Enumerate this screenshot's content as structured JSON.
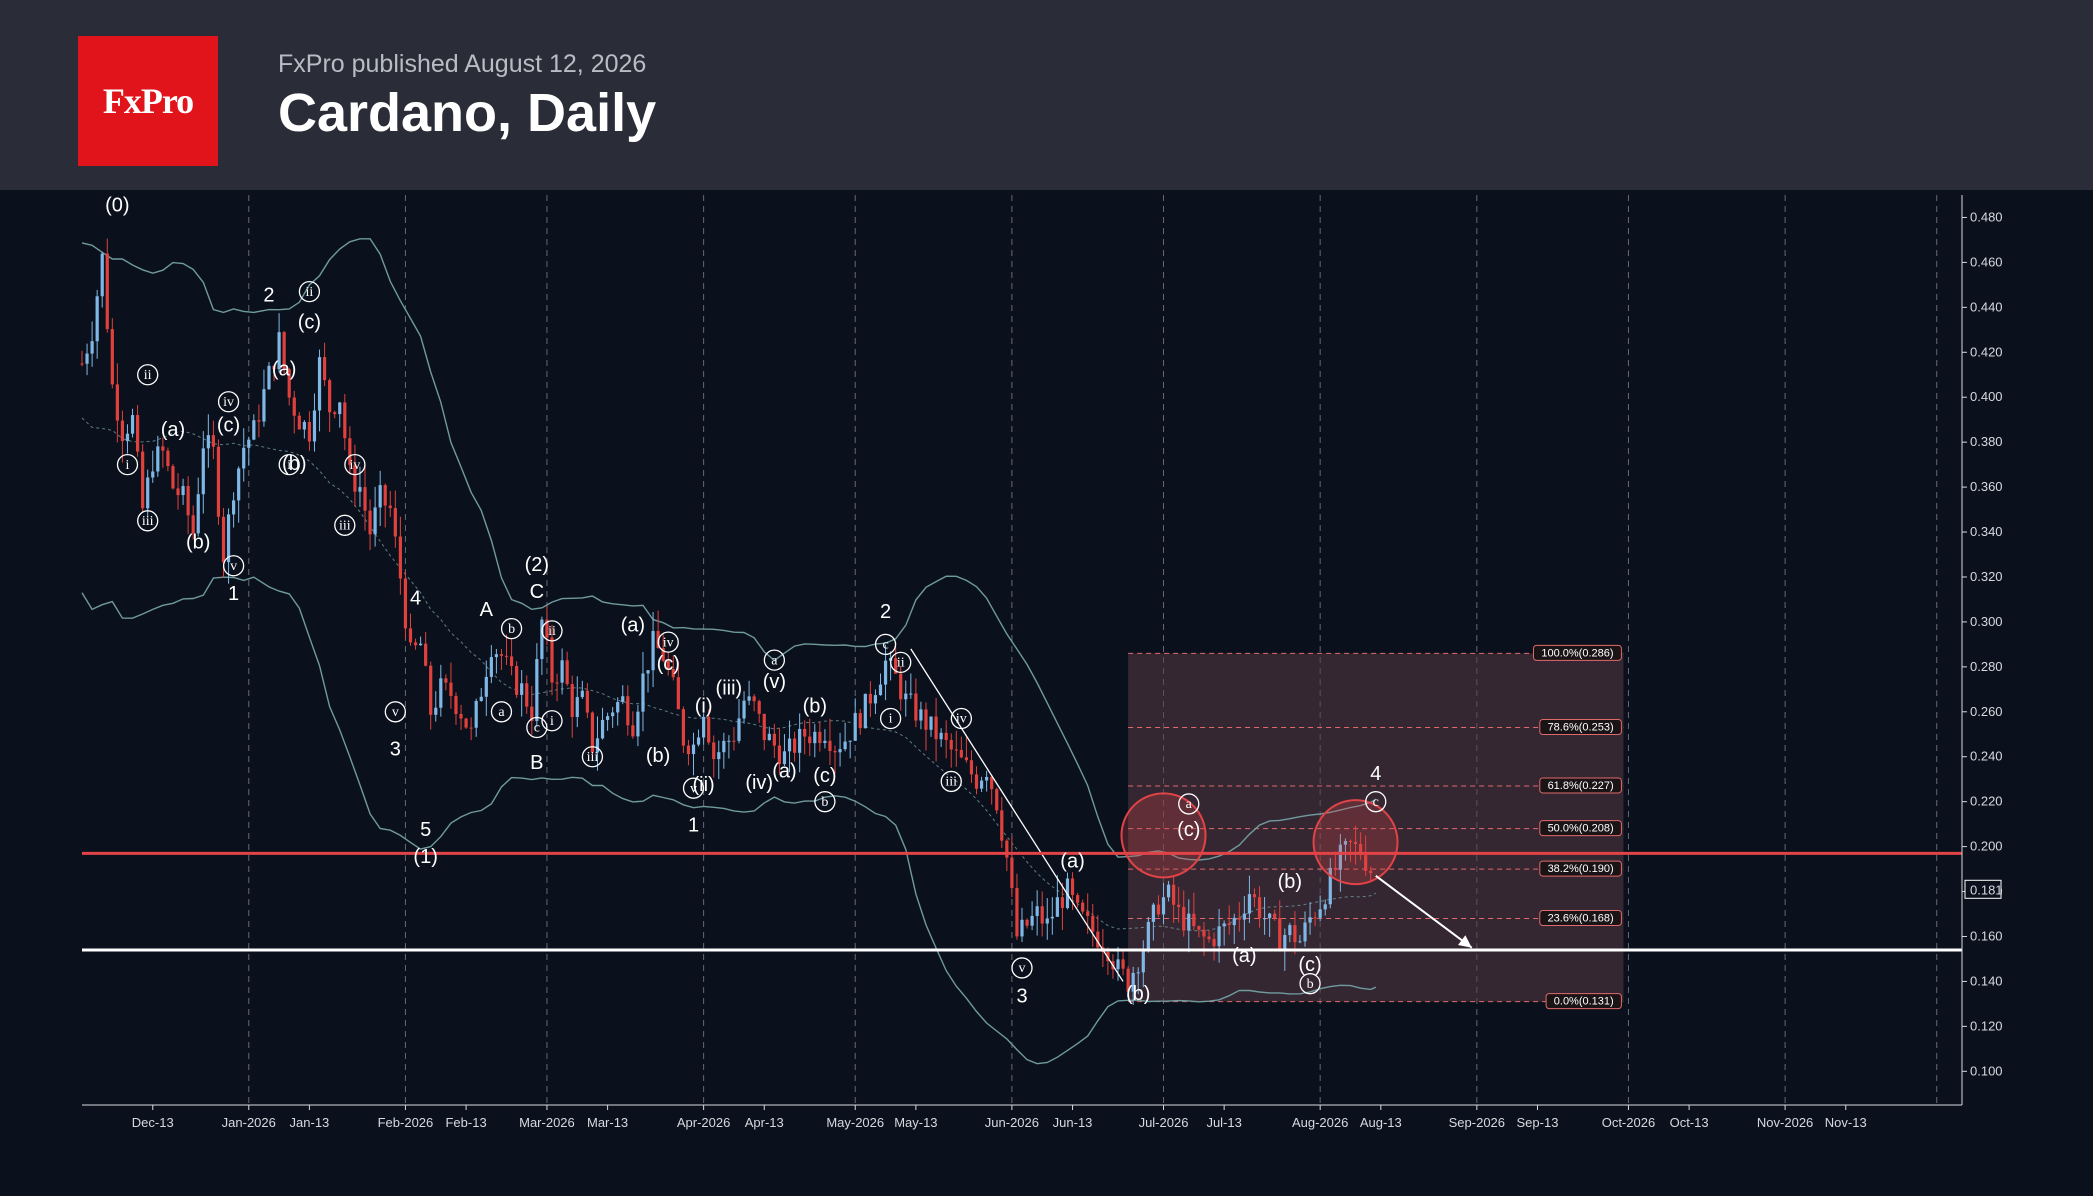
{
  "header": {
    "logo_text": "FxPro",
    "published": "FxPro published August 12, 2026",
    "title": "Cardano, Daily"
  },
  "colors": {
    "background": "#0b111c",
    "header": "#2a2d37",
    "logo": "#e2141b",
    "bull_candle": "#7fb8e6",
    "bear_candle": "#e0413d",
    "bollinger": "#6f9a9e",
    "resistance": "#e24346",
    "support": "#ffffff",
    "fib_zone": "#5a3a46"
  },
  "chart_data": {
    "type": "candlestick",
    "title": "Cardano, Daily",
    "ylim": [
      0.085,
      0.49
    ],
    "x_range": [
      "2025-11-29",
      "2026-12-06"
    ],
    "y_ticks": [
      "0.100",
      "0.120",
      "0.140",
      "0.160",
      "0.180",
      "0.200",
      "0.220",
      "0.240",
      "0.260",
      "0.280",
      "0.300",
      "0.320",
      "0.340",
      "0.360",
      "0.380",
      "0.400",
      "0.420",
      "0.440",
      "0.460",
      "0.480"
    ],
    "x_ticks": [
      {
        "date": "2025-12-13",
        "label": "Dec-13"
      },
      {
        "date": "2026-01-01",
        "label": "Jan-2026"
      },
      {
        "date": "2026-01-13",
        "label": "Jan-13"
      },
      {
        "date": "2026-02-01",
        "label": "Feb-2026"
      },
      {
        "date": "2026-02-13",
        "label": "Feb-13"
      },
      {
        "date": "2026-03-01",
        "label": "Mar-2026"
      },
      {
        "date": "2026-03-13",
        "label": "Mar-13"
      },
      {
        "date": "2026-04-01",
        "label": "Apr-2026"
      },
      {
        "date": "2026-04-13",
        "label": "Apr-13"
      },
      {
        "date": "2026-05-01",
        "label": "May-2026"
      },
      {
        "date": "2026-05-13",
        "label": "May-13"
      },
      {
        "date": "2026-06-01",
        "label": "Jun-2026"
      },
      {
        "date": "2026-06-13",
        "label": "Jun-13"
      },
      {
        "date": "2026-07-01",
        "label": "Jul-2026"
      },
      {
        "date": "2026-07-13",
        "label": "Jul-13"
      },
      {
        "date": "2026-08-01",
        "label": "Aug-2026"
      },
      {
        "date": "2026-08-13",
        "label": "Aug-13"
      },
      {
        "date": "2026-09-01",
        "label": "Sep-2026"
      },
      {
        "date": "2026-09-13",
        "label": "Sep-13"
      },
      {
        "date": "2026-10-01",
        "label": "Oct-2026"
      },
      {
        "date": "2026-10-13",
        "label": "Oct-13"
      },
      {
        "date": "2026-11-01",
        "label": "Nov-2026"
      },
      {
        "date": "2026-11-13",
        "label": "Nov-13"
      }
    ],
    "gridlines_at": [
      "2026-01-01",
      "2026-02-01",
      "2026-03-01",
      "2026-04-01",
      "2026-05-01",
      "2026-06-01",
      "2026-07-01",
      "2026-08-01",
      "2026-09-01",
      "2026-10-01",
      "2026-11-01",
      "2026-12-01"
    ],
    "price_path": [
      [
        "2025-11-29",
        0.415
      ],
      [
        "2025-12-01",
        0.43
      ],
      [
        "2025-12-03",
        0.462
      ],
      [
        "2025-12-05",
        0.405
      ],
      [
        "2025-12-07",
        0.385
      ],
      [
        "2025-12-09",
        0.39
      ],
      [
        "2025-12-11",
        0.35
      ],
      [
        "2025-12-13",
        0.372
      ],
      [
        "2025-12-15",
        0.375
      ],
      [
        "2025-12-17",
        0.36
      ],
      [
        "2025-12-19",
        0.355
      ],
      [
        "2025-12-21",
        0.34
      ],
      [
        "2025-12-23",
        0.38
      ],
      [
        "2025-12-25",
        0.375
      ],
      [
        "2025-12-27",
        0.33
      ],
      [
        "2025-12-29",
        0.36
      ],
      [
        "2025-12-31",
        0.378
      ],
      [
        "2026-01-02",
        0.385
      ],
      [
        "2026-01-05",
        0.41
      ],
      [
        "2026-01-07",
        0.425
      ],
      [
        "2026-01-09",
        0.4
      ],
      [
        "2026-01-11",
        0.39
      ],
      [
        "2026-01-13",
        0.385
      ],
      [
        "2026-01-15",
        0.415
      ],
      [
        "2026-01-17",
        0.395
      ],
      [
        "2026-01-19",
        0.4
      ],
      [
        "2026-01-21",
        0.365
      ],
      [
        "2026-01-23",
        0.36
      ],
      [
        "2026-01-25",
        0.34
      ],
      [
        "2026-01-27",
        0.355
      ],
      [
        "2026-01-29",
        0.35
      ],
      [
        "2026-01-31",
        0.32
      ],
      [
        "2026-02-02",
        0.285
      ],
      [
        "2026-02-04",
        0.29
      ],
      [
        "2026-02-06",
        0.26
      ],
      [
        "2026-02-08",
        0.27
      ],
      [
        "2026-02-10",
        0.268
      ],
      [
        "2026-02-12",
        0.26
      ],
      [
        "2026-02-14",
        0.25
      ],
      [
        "2026-02-16",
        0.27
      ],
      [
        "2026-02-18",
        0.29
      ],
      [
        "2026-02-20",
        0.285
      ],
      [
        "2026-02-22",
        0.275
      ],
      [
        "2026-02-24",
        0.27
      ],
      [
        "2026-02-26",
        0.26
      ],
      [
        "2026-02-28",
        0.3
      ],
      [
        "2026-03-02",
        0.275
      ],
      [
        "2026-03-04",
        0.28
      ],
      [
        "2026-03-06",
        0.262
      ],
      [
        "2026-03-08",
        0.265
      ],
      [
        "2026-03-10",
        0.245
      ],
      [
        "2026-03-12",
        0.255
      ],
      [
        "2026-03-14",
        0.262
      ],
      [
        "2026-03-16",
        0.265
      ],
      [
        "2026-03-18",
        0.255
      ],
      [
        "2026-03-20",
        0.275
      ],
      [
        "2026-03-22",
        0.29
      ],
      [
        "2026-03-24",
        0.285
      ],
      [
        "2026-03-26",
        0.27
      ],
      [
        "2026-03-28",
        0.248
      ],
      [
        "2026-03-30",
        0.245
      ],
      [
        "2026-04-01",
        0.262
      ],
      [
        "2026-04-03",
        0.24
      ],
      [
        "2026-04-05",
        0.245
      ],
      [
        "2026-04-07",
        0.25
      ],
      [
        "2026-04-09",
        0.265
      ],
      [
        "2026-04-11",
        0.262
      ],
      [
        "2026-04-13",
        0.25
      ],
      [
        "2026-04-15",
        0.245
      ],
      [
        "2026-04-17",
        0.24
      ],
      [
        "2026-04-19",
        0.245
      ],
      [
        "2026-04-21",
        0.25
      ],
      [
        "2026-04-23",
        0.25
      ],
      [
        "2026-04-25",
        0.252
      ],
      [
        "2026-04-27",
        0.245
      ],
      [
        "2026-04-29",
        0.248
      ],
      [
        "2026-05-01",
        0.255
      ],
      [
        "2026-05-03",
        0.262
      ],
      [
        "2026-05-05",
        0.272
      ],
      [
        "2026-05-07",
        0.282
      ],
      [
        "2026-05-09",
        0.275
      ],
      [
        "2026-05-11",
        0.265
      ],
      [
        "2026-05-13",
        0.26
      ],
      [
        "2026-05-15",
        0.255
      ],
      [
        "2026-05-17",
        0.25
      ],
      [
        "2026-05-19",
        0.245
      ],
      [
        "2026-05-21",
        0.24
      ],
      [
        "2026-05-23",
        0.235
      ],
      [
        "2026-05-25",
        0.23
      ],
      [
        "2026-05-27",
        0.235
      ],
      [
        "2026-05-29",
        0.22
      ],
      [
        "2026-05-31",
        0.195
      ],
      [
        "2026-06-02",
        0.16
      ],
      [
        "2026-06-04",
        0.165
      ],
      [
        "2026-06-06",
        0.17
      ],
      [
        "2026-06-08",
        0.165
      ],
      [
        "2026-06-10",
        0.175
      ],
      [
        "2026-06-12",
        0.18
      ],
      [
        "2026-06-14",
        0.17
      ],
      [
        "2026-06-16",
        0.165
      ],
      [
        "2026-06-18",
        0.16
      ],
      [
        "2026-06-20",
        0.155
      ],
      [
        "2026-06-22",
        0.145
      ],
      [
        "2026-06-24",
        0.14
      ],
      [
        "2026-06-26",
        0.15
      ],
      [
        "2026-06-28",
        0.162
      ],
      [
        "2026-06-30",
        0.175
      ],
      [
        "2026-07-02",
        0.178
      ],
      [
        "2026-07-04",
        0.17
      ],
      [
        "2026-07-06",
        0.165
      ],
      [
        "2026-07-08",
        0.16
      ],
      [
        "2026-07-10",
        0.158
      ],
      [
        "2026-07-12",
        0.162
      ],
      [
        "2026-07-14",
        0.165
      ],
      [
        "2026-07-16",
        0.17
      ],
      [
        "2026-07-18",
        0.18
      ],
      [
        "2026-07-20",
        0.172
      ],
      [
        "2026-07-22",
        0.165
      ],
      [
        "2026-07-24",
        0.16
      ],
      [
        "2026-07-26",
        0.162
      ],
      [
        "2026-07-28",
        0.158
      ],
      [
        "2026-07-30",
        0.168
      ],
      [
        "2026-08-01",
        0.175
      ],
      [
        "2026-08-03",
        0.185
      ],
      [
        "2026-08-05",
        0.195
      ],
      [
        "2026-08-07",
        0.2
      ],
      [
        "2026-08-09",
        0.198
      ],
      [
        "2026-08-11",
        0.19
      ],
      [
        "2026-08-12",
        0.181
      ]
    ],
    "current_price": "0.181",
    "resistance_level": 0.197,
    "support_level": 0.154,
    "fibonacci": {
      "start": "2026-06-24",
      "end": "2026-09-30",
      "levels": [
        {
          "value": 0.286,
          "label": "100.0%(0.286)"
        },
        {
          "value": 0.253,
          "label": "78.6%(0.253)"
        },
        {
          "value": 0.227,
          "label": "61.8%(0.227)"
        },
        {
          "value": 0.208,
          "label": "50.0%(0.208)"
        },
        {
          "value": 0.19,
          "label": "38.2%(0.190)"
        },
        {
          "value": 0.168,
          "label": "23.6%(0.168)"
        },
        {
          "value": 0.131,
          "label": "0.0%(0.131)"
        }
      ]
    },
    "forecast_arrow": [
      [
        "2026-08-12",
        0.187
      ],
      [
        "2026-08-31",
        0.155
      ]
    ],
    "trendline": [
      [
        "2026-05-12",
        0.288
      ],
      [
        "2026-06-23",
        0.14
      ]
    ],
    "highlight_circles": [
      {
        "date": "2026-07-01",
        "value": 0.205
      },
      {
        "date": "2026-08-08",
        "value": 0.202
      }
    ],
    "wave_labels": [
      {
        "t": "(0)",
        "date": "2025-12-06",
        "v": 0.485,
        "style": "plain"
      },
      {
        "t": "ii",
        "date": "2025-12-12",
        "v": 0.41,
        "style": "circle"
      },
      {
        "t": "i",
        "date": "2025-12-08",
        "v": 0.37,
        "style": "circle"
      },
      {
        "t": "(a)",
        "date": "2025-12-17",
        "v": 0.385,
        "style": "plain"
      },
      {
        "t": "iii",
        "date": "2025-12-12",
        "v": 0.345,
        "style": "circle"
      },
      {
        "t": "(b)",
        "date": "2025-12-22",
        "v": 0.335,
        "style": "plain"
      },
      {
        "t": "(c)",
        "date": "2025-12-28",
        "v": 0.387,
        "style": "plain"
      },
      {
        "t": "iv",
        "date": "2025-12-28",
        "v": 0.398,
        "style": "circle"
      },
      {
        "t": "v",
        "date": "2025-12-29",
        "v": 0.325,
        "style": "circle"
      },
      {
        "t": "1",
        "date": "2025-12-29",
        "v": 0.312,
        "style": "plain"
      },
      {
        "t": "2",
        "date": "2026-01-05",
        "v": 0.445,
        "style": "plain"
      },
      {
        "t": "ii",
        "date": "2026-01-13",
        "v": 0.447,
        "style": "circle"
      },
      {
        "t": "(c)",
        "date": "2026-01-13",
        "v": 0.433,
        "style": "plain"
      },
      {
        "t": "(a)",
        "date": "2026-01-08",
        "v": 0.412,
        "style": "plain"
      },
      {
        "t": "i",
        "date": "2026-01-09",
        "v": 0.37,
        "style": "circle"
      },
      {
        "t": "(b)",
        "date": "2026-01-10",
        "v": 0.37,
        "style": "plain"
      },
      {
        "t": "iv",
        "date": "2026-01-22",
        "v": 0.37,
        "style": "circle"
      },
      {
        "t": "iii",
        "date": "2026-01-20",
        "v": 0.343,
        "style": "circle"
      },
      {
        "t": "4",
        "date": "2026-02-03",
        "v": 0.31,
        "style": "plain"
      },
      {
        "t": "v",
        "date": "2026-01-30",
        "v": 0.26,
        "style": "circle"
      },
      {
        "t": "3",
        "date": "2026-01-30",
        "v": 0.243,
        "style": "plain"
      },
      {
        "t": "5",
        "date": "2026-02-05",
        "v": 0.207,
        "style": "plain"
      },
      {
        "t": "(1)",
        "date": "2026-02-05",
        "v": 0.195,
        "style": "plain"
      },
      {
        "t": "A",
        "date": "2026-02-17",
        "v": 0.305,
        "style": "plain"
      },
      {
        "t": "b",
        "date": "2026-02-22",
        "v": 0.297,
        "style": "circle"
      },
      {
        "t": "a",
        "date": "2026-02-20",
        "v": 0.26,
        "style": "circle"
      },
      {
        "t": "(2)",
        "date": "2026-02-27",
        "v": 0.325,
        "style": "plain"
      },
      {
        "t": "C",
        "date": "2026-02-27",
        "v": 0.313,
        "style": "plain"
      },
      {
        "t": "ii",
        "date": "2026-03-02",
        "v": 0.296,
        "style": "circle"
      },
      {
        "t": "i",
        "date": "2026-03-02",
        "v": 0.256,
        "style": "circle"
      },
      {
        "t": "c",
        "date": "2026-02-27",
        "v": 0.253,
        "style": "circle"
      },
      {
        "t": "B",
        "date": "2026-02-27",
        "v": 0.237,
        "style": "plain"
      },
      {
        "t": "iii",
        "date": "2026-03-10",
        "v": 0.24,
        "style": "circle"
      },
      {
        "t": "(a)",
        "date": "2026-03-18",
        "v": 0.298,
        "style": "plain"
      },
      {
        "t": "iv",
        "date": "2026-03-25",
        "v": 0.291,
        "style": "circle"
      },
      {
        "t": "(c)",
        "date": "2026-03-25",
        "v": 0.281,
        "style": "plain"
      },
      {
        "t": "(b)",
        "date": "2026-03-23",
        "v": 0.24,
        "style": "plain"
      },
      {
        "t": "(i)",
        "date": "2026-04-01",
        "v": 0.262,
        "style": "plain"
      },
      {
        "t": "(iii)",
        "date": "2026-04-06",
        "v": 0.27,
        "style": "plain"
      },
      {
        "t": "v",
        "date": "2026-03-30",
        "v": 0.226,
        "style": "circle"
      },
      {
        "t": "(ii)",
        "date": "2026-04-01",
        "v": 0.227,
        "style": "plain"
      },
      {
        "t": "1",
        "date": "2026-03-30",
        "v": 0.209,
        "style": "plain"
      },
      {
        "t": "(iv)",
        "date": "2026-04-12",
        "v": 0.228,
        "style": "plain"
      },
      {
        "t": "(a)",
        "date": "2026-04-17",
        "v": 0.233,
        "style": "plain"
      },
      {
        "t": "a",
        "date": "2026-04-15",
        "v": 0.283,
        "style": "circle"
      },
      {
        "t": "(v)",
        "date": "2026-04-15",
        "v": 0.273,
        "style": "plain"
      },
      {
        "t": "(b)",
        "date": "2026-04-23",
        "v": 0.262,
        "style": "plain"
      },
      {
        "t": "(c)",
        "date": "2026-04-25",
        "v": 0.231,
        "style": "plain"
      },
      {
        "t": "b",
        "date": "2026-04-25",
        "v": 0.22,
        "style": "circle"
      },
      {
        "t": "2",
        "date": "2026-05-07",
        "v": 0.304,
        "style": "plain"
      },
      {
        "t": "c",
        "date": "2026-05-07",
        "v": 0.29,
        "style": "circle"
      },
      {
        "t": "ii",
        "date": "2026-05-10",
        "v": 0.282,
        "style": "circle"
      },
      {
        "t": "i",
        "date": "2026-05-08",
        "v": 0.257,
        "style": "circle"
      },
      {
        "t": "iv",
        "date": "2026-05-22",
        "v": 0.257,
        "style": "circle"
      },
      {
        "t": "iii",
        "date": "2026-05-20",
        "v": 0.229,
        "style": "circle"
      },
      {
        "t": "(a)",
        "date": "2026-06-13",
        "v": 0.193,
        "style": "plain"
      },
      {
        "t": "v",
        "date": "2026-06-03",
        "v": 0.146,
        "style": "circle"
      },
      {
        "t": "3",
        "date": "2026-06-03",
        "v": 0.133,
        "style": "plain"
      },
      {
        "t": "(b)",
        "date": "2026-06-26",
        "v": 0.134,
        "style": "plain"
      },
      {
        "t": "a",
        "date": "2026-07-06",
        "v": 0.219,
        "style": "circle"
      },
      {
        "t": "(c)",
        "date": "2026-07-06",
        "v": 0.207,
        "style": "plain"
      },
      {
        "t": "(b)",
        "date": "2026-07-26",
        "v": 0.184,
        "style": "plain"
      },
      {
        "t": "(a)",
        "date": "2026-07-17",
        "v": 0.151,
        "style": "plain"
      },
      {
        "t": "(c)",
        "date": "2026-07-30",
        "v": 0.147,
        "style": "plain"
      },
      {
        "t": "b",
        "date": "2026-07-30",
        "v": 0.139,
        "style": "circle"
      },
      {
        "t": "4",
        "date": "2026-08-12",
        "v": 0.232,
        "style": "plain"
      },
      {
        "t": "c",
        "date": "2026-08-12",
        "v": 0.22,
        "style": "circle"
      }
    ]
  }
}
